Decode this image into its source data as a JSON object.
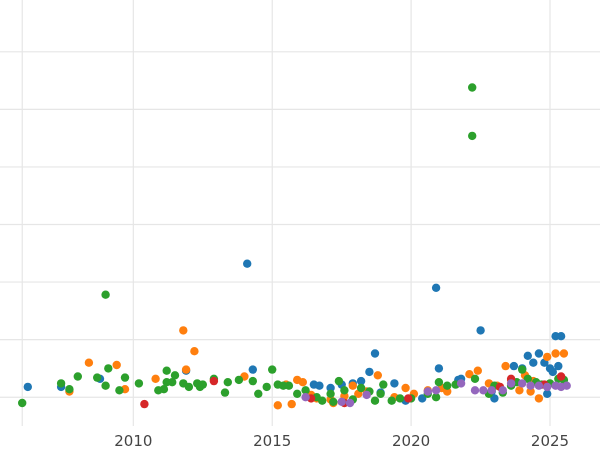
{
  "chart_data": {
    "type": "scatter",
    "title": "",
    "xlabel": "",
    "ylabel": "",
    "xlim": [
      2005.2,
      2026.8
    ],
    "ylim": [
      0,
      7.4
    ],
    "grid": true,
    "legend": "none",
    "x_ticks": [
      2010,
      2015,
      2020,
      2025
    ],
    "x_tick_labels": [
      "2010",
      "2015",
      "2020",
      "2025"
    ],
    "y_gridlines": [
      0.5,
      1.5,
      2.5,
      3.5,
      4.5,
      5.5,
      6.5,
      7.5
    ],
    "series": [
      {
        "color": "#1f77b4",
        "points": [
          [
            2006.2,
            0.68
          ],
          [
            2007.4,
            0.68
          ],
          [
            2008.8,
            0.82
          ],
          [
            2011.9,
            0.96
          ],
          [
            2014.1,
            2.82
          ],
          [
            2014.3,
            0.98
          ],
          [
            2016.5,
            0.72
          ],
          [
            2016.7,
            0.7
          ],
          [
            2017.1,
            0.66
          ],
          [
            2017.5,
            0.72
          ],
          [
            2017.9,
            0.74
          ],
          [
            2018.2,
            0.78
          ],
          [
            2018.5,
            0.94
          ],
          [
            2018.7,
            1.26
          ],
          [
            2018.9,
            0.58
          ],
          [
            2019.4,
            0.74
          ],
          [
            2019.8,
            0.44
          ],
          [
            2020.4,
            0.48
          ],
          [
            2020.9,
            2.4
          ],
          [
            2021.0,
            1.0
          ],
          [
            2021.7,
            0.8
          ],
          [
            2021.8,
            0.82
          ],
          [
            2022.5,
            1.66
          ],
          [
            2022.9,
            0.6
          ],
          [
            2023.0,
            0.48
          ],
          [
            2023.7,
            1.04
          ],
          [
            2024.0,
            1.0
          ],
          [
            2024.2,
            1.22
          ],
          [
            2024.4,
            1.1
          ],
          [
            2024.6,
            1.26
          ],
          [
            2024.8,
            1.1
          ],
          [
            2025.0,
            1.0
          ],
          [
            2025.1,
            0.94
          ],
          [
            2025.2,
            1.56
          ],
          [
            2025.3,
            1.04
          ],
          [
            2025.4,
            1.56
          ],
          [
            2024.9,
            0.56
          ]
        ]
      },
      {
        "color": "#ff7f0e",
        "points": [
          [
            2007.7,
            0.6
          ],
          [
            2008.4,
            1.1
          ],
          [
            2009.4,
            1.06
          ],
          [
            2009.7,
            0.64
          ],
          [
            2010.8,
            0.82
          ],
          [
            2011.8,
            1.66
          ],
          [
            2011.9,
            0.98
          ],
          [
            2012.2,
            1.3
          ],
          [
            2012.9,
            0.8
          ],
          [
            2014.0,
            0.86
          ],
          [
            2015.2,
            0.36
          ],
          [
            2015.5,
            0.72
          ],
          [
            2015.7,
            0.38
          ],
          [
            2015.9,
            0.8
          ],
          [
            2016.1,
            0.76
          ],
          [
            2016.4,
            0.54
          ],
          [
            2016.6,
            0.48
          ],
          [
            2017.1,
            0.46
          ],
          [
            2017.2,
            0.4
          ],
          [
            2017.6,
            0.52
          ],
          [
            2017.9,
            0.7
          ],
          [
            2018.1,
            0.56
          ],
          [
            2018.4,
            0.6
          ],
          [
            2018.8,
            0.88
          ],
          [
            2019.4,
            0.5
          ],
          [
            2019.8,
            0.66
          ],
          [
            2020.1,
            0.56
          ],
          [
            2020.6,
            0.62
          ],
          [
            2021.1,
            0.66
          ],
          [
            2021.3,
            0.6
          ],
          [
            2022.1,
            0.9
          ],
          [
            2022.4,
            0.96
          ],
          [
            2022.8,
            0.74
          ],
          [
            2023.4,
            1.04
          ],
          [
            2023.6,
            0.8
          ],
          [
            2023.9,
            0.62
          ],
          [
            2024.1,
            0.88
          ],
          [
            2024.4,
            0.78
          ],
          [
            2024.6,
            0.48
          ],
          [
            2024.9,
            1.2
          ],
          [
            2025.2,
            1.26
          ],
          [
            2025.5,
            1.26
          ],
          [
            2023.1,
            0.7
          ],
          [
            2024.3,
            0.6
          ]
        ]
      },
      {
        "color": "#2ca02c",
        "points": [
          [
            2006.0,
            0.4
          ],
          [
            2007.4,
            0.74
          ],
          [
            2007.7,
            0.64
          ],
          [
            2008.0,
            0.86
          ],
          [
            2008.7,
            0.84
          ],
          [
            2009.0,
            0.7
          ],
          [
            2009.1,
            1.0
          ],
          [
            2009.0,
            2.28
          ],
          [
            2009.5,
            0.62
          ],
          [
            2009.7,
            0.84
          ],
          [
            2010.2,
            0.74
          ],
          [
            2010.9,
            0.62
          ],
          [
            2011.1,
            0.64
          ],
          [
            2011.2,
            0.76
          ],
          [
            2011.2,
            0.96
          ],
          [
            2011.4,
            0.76
          ],
          [
            2011.5,
            0.88
          ],
          [
            2011.8,
            0.74
          ],
          [
            2012.0,
            0.68
          ],
          [
            2012.3,
            0.74
          ],
          [
            2012.4,
            0.68
          ],
          [
            2012.5,
            0.72
          ],
          [
            2012.9,
            0.82
          ],
          [
            2013.3,
            0.58
          ],
          [
            2013.4,
            0.76
          ],
          [
            2013.8,
            0.8
          ],
          [
            2014.3,
            0.78
          ],
          [
            2014.5,
            0.56
          ],
          [
            2014.8,
            0.68
          ],
          [
            2015.0,
            0.98
          ],
          [
            2015.2,
            0.72
          ],
          [
            2015.4,
            0.7
          ],
          [
            2015.6,
            0.7
          ],
          [
            2015.9,
            0.56
          ],
          [
            2016.2,
            0.62
          ],
          [
            2016.6,
            0.5
          ],
          [
            2016.8,
            0.44
          ],
          [
            2017.1,
            0.56
          ],
          [
            2017.2,
            0.42
          ],
          [
            2017.4,
            0.78
          ],
          [
            2017.6,
            0.62
          ],
          [
            2017.9,
            0.46
          ],
          [
            2018.2,
            0.66
          ],
          [
            2018.5,
            0.6
          ],
          [
            2018.7,
            0.44
          ],
          [
            2018.9,
            0.56
          ],
          [
            2019.0,
            0.72
          ],
          [
            2019.3,
            0.44
          ],
          [
            2019.6,
            0.48
          ],
          [
            2020.0,
            0.48
          ],
          [
            2020.6,
            0.56
          ],
          [
            2020.9,
            0.5
          ],
          [
            2021.0,
            0.76
          ],
          [
            2021.3,
            0.7
          ],
          [
            2021.6,
            0.72
          ],
          [
            2022.2,
            5.88
          ],
          [
            2022.2,
            5.04
          ],
          [
            2022.3,
            0.82
          ],
          [
            2022.8,
            0.56
          ],
          [
            2023.0,
            0.7
          ],
          [
            2023.3,
            0.58
          ],
          [
            2023.6,
            0.7
          ],
          [
            2023.8,
            0.76
          ],
          [
            2024.0,
            0.98
          ],
          [
            2024.2,
            0.82
          ],
          [
            2024.5,
            0.76
          ],
          [
            2024.7,
            0.72
          ],
          [
            2025.0,
            0.74
          ],
          [
            2025.3,
            0.82
          ],
          [
            2025.5,
            0.8
          ]
        ]
      },
      {
        "color": "#d62728",
        "points": [
          [
            2010.4,
            0.38
          ],
          [
            2012.9,
            0.78
          ],
          [
            2016.4,
            0.48
          ],
          [
            2017.6,
            0.4
          ],
          [
            2019.9,
            0.48
          ],
          [
            2023.2,
            0.68
          ],
          [
            2023.6,
            0.82
          ],
          [
            2024.8,
            0.72
          ],
          [
            2025.4,
            0.86
          ]
        ]
      },
      {
        "color": "#9467bd",
        "points": [
          [
            2016.2,
            0.5
          ],
          [
            2017.5,
            0.42
          ],
          [
            2017.8,
            0.4
          ],
          [
            2018.4,
            0.54
          ],
          [
            2020.6,
            0.6
          ],
          [
            2020.9,
            0.62
          ],
          [
            2021.8,
            0.74
          ],
          [
            2022.3,
            0.62
          ],
          [
            2022.6,
            0.62
          ],
          [
            2022.9,
            0.62
          ],
          [
            2023.3,
            0.62
          ],
          [
            2023.6,
            0.74
          ],
          [
            2024.0,
            0.74
          ],
          [
            2024.3,
            0.7
          ],
          [
            2024.6,
            0.7
          ],
          [
            2024.9,
            0.68
          ],
          [
            2025.2,
            0.7
          ],
          [
            2025.4,
            0.68
          ],
          [
            2025.6,
            0.7
          ]
        ]
      }
    ]
  }
}
